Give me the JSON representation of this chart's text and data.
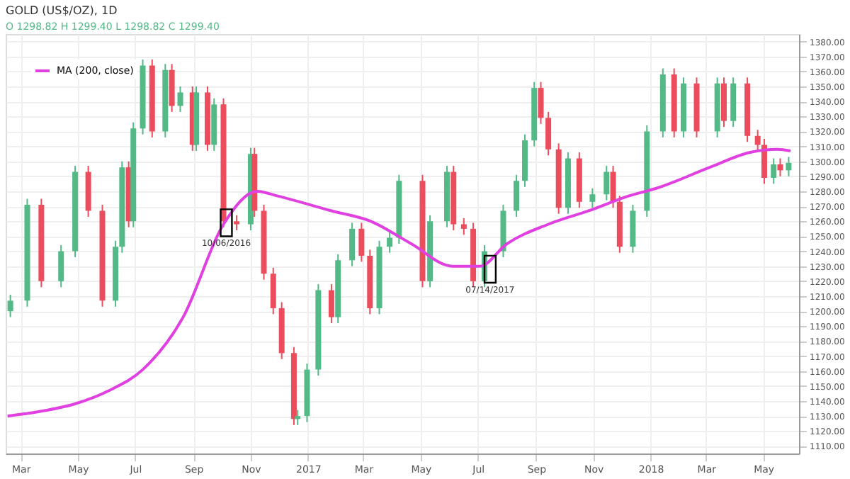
{
  "chart_data": {
    "type": "candlestick",
    "title": "GOLD (US$/OZ), 1D",
    "subtitle": "O 1298.82 H 1299.40 L 1298.82 C 1299.40",
    "x": [
      "2016-02-19",
      "2016-03-08",
      "2016-03-23",
      "2016-04-13",
      "2016-04-28",
      "2016-05-12",
      "2016-05-27",
      "2016-06-10",
      "2016-06-17",
      "2016-06-24",
      "2016-06-29",
      "2016-07-09",
      "2016-07-19",
      "2016-08-02",
      "2016-08-09",
      "2016-08-18",
      "2016-08-31",
      "2016-09-04",
      "2016-09-16",
      "2016-09-23",
      "2016-10-03",
      "2016-10-17",
      "2016-11-01",
      "2016-11-05",
      "2016-11-15",
      "2016-11-25",
      "2016-12-04",
      "2016-12-17",
      "2016-12-21",
      "2016-12-31",
      "2017-01-12",
      "2017-01-26",
      "2017-02-02",
      "2017-02-17",
      "2017-02-27",
      "2017-03-08",
      "2017-03-18",
      "2017-03-29",
      "2017-04-08",
      "2017-05-03",
      "2017-05-11",
      "2017-05-29",
      "2017-06-05",
      "2017-06-16",
      "2017-06-26",
      "2017-07-08",
      "2017-07-28",
      "2017-08-11",
      "2017-08-20",
      "2017-08-30",
      "2017-09-06",
      "2017-09-14",
      "2017-09-25",
      "2017-10-05",
      "2017-10-17",
      "2017-10-31",
      "2017-11-15",
      "2017-11-22",
      "2017-11-29",
      "2017-12-13",
      "2017-12-28",
      "2018-01-14",
      "2018-01-26",
      "2018-02-05",
      "2018-02-19",
      "2018-03-13",
      "2018-03-20",
      "2018-03-30",
      "2018-04-14",
      "2018-04-25",
      "2018-05-02",
      "2018-05-12",
      "2018-05-19",
      "2018-05-28"
    ],
    "ohlc": [
      [
        1200,
        1211,
        1196,
        1207
      ],
      [
        1207,
        1275,
        1203,
        1271
      ],
      [
        1271,
        1275,
        1216,
        1220
      ],
      [
        1220,
        1244,
        1216,
        1240
      ],
      [
        1240,
        1297,
        1236,
        1293
      ],
      [
        1293,
        1297,
        1263,
        1267
      ],
      [
        1267,
        1271,
        1203,
        1207
      ],
      [
        1207,
        1247,
        1203,
        1243
      ],
      [
        1243,
        1300,
        1239,
        1296
      ],
      [
        1296,
        1300,
        1256,
        1260
      ],
      [
        1260,
        1326,
        1256,
        1322
      ],
      [
        1322,
        1368,
        1318,
        1364
      ],
      [
        1364,
        1368,
        1316,
        1320
      ],
      [
        1320,
        1365,
        1316,
        1361
      ],
      [
        1361,
        1365,
        1333,
        1337
      ],
      [
        1337,
        1350,
        1333,
        1346
      ],
      [
        1346,
        1350,
        1307,
        1311
      ],
      [
        1311,
        1350,
        1307,
        1346
      ],
      [
        1346,
        1350,
        1307,
        1311
      ],
      [
        1311,
        1342,
        1307,
        1338
      ],
      [
        1338,
        1342,
        1256,
        1260
      ],
      [
        1260,
        1264,
        1254,
        1258
      ],
      [
        1258,
        1309,
        1254,
        1305
      ],
      [
        1305,
        1309,
        1263,
        1267
      ],
      [
        1267,
        1271,
        1221,
        1225
      ],
      [
        1225,
        1229,
        1198,
        1202
      ],
      [
        1202,
        1206,
        1168,
        1172
      ],
      [
        1172,
        1176,
        1124,
        1128
      ],
      [
        1128,
        1134,
        1124,
        1130
      ],
      [
        1130,
        1165,
        1126,
        1161
      ],
      [
        1161,
        1218,
        1157,
        1214
      ],
      [
        1214,
        1218,
        1192,
        1196
      ],
      [
        1196,
        1238,
        1192,
        1234
      ],
      [
        1234,
        1259,
        1230,
        1255
      ],
      [
        1255,
        1259,
        1233,
        1237
      ],
      [
        1237,
        1241,
        1198,
        1202
      ],
      [
        1202,
        1247,
        1198,
        1243
      ],
      [
        1243,
        1253,
        1239,
        1249
      ],
      [
        1249,
        1291,
        1245,
        1287
      ],
      [
        1287,
        1291,
        1216,
        1220
      ],
      [
        1220,
        1264,
        1216,
        1260
      ],
      [
        1260,
        1297,
        1256,
        1293
      ],
      [
        1293,
        1297,
        1254,
        1258
      ],
      [
        1258,
        1262,
        1251,
        1255
      ],
      [
        1255,
        1259,
        1216,
        1220
      ],
      [
        1220,
        1244,
        1216,
        1240
      ],
      [
        1240,
        1271,
        1236,
        1267
      ],
      [
        1267,
        1291,
        1263,
        1287
      ],
      [
        1287,
        1318,
        1283,
        1314
      ],
      [
        1314,
        1353,
        1310,
        1349
      ],
      [
        1349,
        1353,
        1325,
        1329
      ],
      [
        1329,
        1333,
        1304,
        1308
      ],
      [
        1308,
        1312,
        1265,
        1269
      ],
      [
        1269,
        1306,
        1265,
        1302
      ],
      [
        1302,
        1306,
        1269,
        1273
      ],
      [
        1273,
        1282,
        1269,
        1278
      ],
      [
        1278,
        1297,
        1274,
        1293
      ],
      [
        1293,
        1297,
        1269,
        1273
      ],
      [
        1273,
        1277,
        1239,
        1243
      ],
      [
        1243,
        1271,
        1239,
        1267
      ],
      [
        1267,
        1324,
        1263,
        1320
      ],
      [
        1320,
        1362,
        1316,
        1358
      ],
      [
        1358,
        1362,
        1316,
        1320
      ],
      [
        1320,
        1356,
        1316,
        1352
      ],
      [
        1352,
        1356,
        1316,
        1320
      ],
      [
        1320,
        1356,
        1316,
        1352
      ],
      [
        1352,
        1356,
        1323,
        1327
      ],
      [
        1327,
        1356,
        1323,
        1352
      ],
      [
        1352,
        1356,
        1313,
        1317
      ],
      [
        1317,
        1321,
        1307,
        1311
      ],
      [
        1311,
        1315,
        1285,
        1289
      ],
      [
        1289,
        1302,
        1285,
        1298
      ],
      [
        1298,
        1302,
        1290,
        1294
      ],
      [
        1294,
        1303,
        1290,
        1299
      ]
    ],
    "colors": [
      "#53b987",
      "#53b987",
      "#eb4d5c",
      "#53b987",
      "#53b987",
      "#eb4d5c",
      "#eb4d5c",
      "#53b987",
      "#53b987",
      "#eb4d5c",
      "#53b987",
      "#53b987",
      "#eb4d5c",
      "#53b987",
      "#eb4d5c",
      "#53b987",
      "#eb4d5c",
      "#53b987",
      "#eb4d5c",
      "#53b987",
      "#eb4d5c",
      "#eb4d5c",
      "#53b987",
      "#eb4d5c",
      "#eb4d5c",
      "#eb4d5c",
      "#eb4d5c",
      "#eb4d5c",
      "#53b987",
      "#53b987",
      "#53b987",
      "#eb4d5c",
      "#53b987",
      "#53b987",
      "#eb4d5c",
      "#eb4d5c",
      "#53b987",
      "#53b987",
      "#53b987",
      "#eb4d5c",
      "#53b987",
      "#53b987",
      "#eb4d5c",
      "#eb4d5c",
      "#eb4d5c",
      "#53b987",
      "#53b987",
      "#53b987",
      "#53b987",
      "#53b987",
      "#eb4d5c",
      "#eb4d5c",
      "#eb4d5c",
      "#53b987",
      "#eb4d5c",
      "#53b987",
      "#53b987",
      "#eb4d5c",
      "#eb4d5c",
      "#53b987",
      "#53b987",
      "#53b987",
      "#eb4d5c",
      "#53b987",
      "#eb4d5c",
      "#53b987",
      "#eb4d5c",
      "#53b987",
      "#eb4d5c",
      "#eb4d5c",
      "#eb4d5c",
      "#53b987",
      "#eb4d5c",
      "#53b987"
    ],
    "series": [
      {
        "name": "MA (200, close)",
        "type": "line",
        "color": "#e040e0",
        "x": [
          "2016-02-16",
          "2016-03-21",
          "2016-04-27",
          "2016-06-03",
          "2016-07-09",
          "2016-08-21",
          "2016-10-03",
          "2016-11-08",
          "2016-11-29",
          "2017-01-26",
          "2017-03-09",
          "2017-04-21",
          "2017-06-04",
          "2017-07-03",
          "2017-08-01",
          "2017-09-14",
          "2017-10-27",
          "2017-12-09",
          "2018-01-07",
          "2018-03-05",
          "2018-04-17",
          "2018-05-16",
          "2018-05-30"
        ],
        "values": [
          1130,
          1133,
          1138,
          1147,
          1161,
          1196,
          1258,
          1280,
          1277,
          1267,
          1260,
          1245,
          1230,
          1230,
          1245,
          1258,
          1267,
          1277,
          1282,
          1296,
          1306,
          1308,
          1307
        ]
      }
    ],
    "annotations": [
      {
        "text": "10/06/2016",
        "x": "2016-10-06",
        "y": 1259
      },
      {
        "text": "07/14/2017",
        "x": "2017-07-14",
        "y": 1228
      }
    ],
    "xlim": [
      "2016-02-14",
      "2018-06-08"
    ],
    "xticks": [
      {
        "value": "2016-03-01",
        "label": "Mar"
      },
      {
        "value": "2016-05-01",
        "label": "May"
      },
      {
        "value": "2016-07-01",
        "label": "Jul"
      },
      {
        "value": "2016-09-01",
        "label": "Sep"
      },
      {
        "value": "2016-11-01",
        "label": "Nov"
      },
      {
        "value": "2017-01-01",
        "label": "2017"
      },
      {
        "value": "2017-03-01",
        "label": "Mar"
      },
      {
        "value": "2017-05-01",
        "label": "May"
      },
      {
        "value": "2017-07-01",
        "label": "Jul"
      },
      {
        "value": "2017-09-01",
        "label": "Sep"
      },
      {
        "value": "2017-11-01",
        "label": "Nov"
      },
      {
        "value": "2018-01-01",
        "label": "2018"
      },
      {
        "value": "2018-03-01",
        "label": "Mar"
      },
      {
        "value": "2018-05-01",
        "label": "May"
      }
    ],
    "ylim": [
      1105,
      1385
    ],
    "yticks": [
      {
        "value": 1110,
        "label": "1110.00"
      },
      {
        "value": 1120,
        "label": "1120.00"
      },
      {
        "value": 1130,
        "label": "1130.00"
      },
      {
        "value": 1140,
        "label": "1140.00"
      },
      {
        "value": 1150,
        "label": "1150.00"
      },
      {
        "value": 1160,
        "label": "1160.00"
      },
      {
        "value": 1170,
        "label": "1170.00"
      },
      {
        "value": 1180,
        "label": "1180.00"
      },
      {
        "value": 1190,
        "label": "1190.00"
      },
      {
        "value": 1200,
        "label": "1200.00"
      },
      {
        "value": 1210,
        "label": "1210.00"
      },
      {
        "value": 1220,
        "label": "1220.00"
      },
      {
        "value": 1230,
        "label": "1230.00"
      },
      {
        "value": 1240,
        "label": "1240.00"
      },
      {
        "value": 1250,
        "label": "1250.00"
      },
      {
        "value": 1260,
        "label": "1260.00"
      },
      {
        "value": 1270,
        "label": "1270.00"
      },
      {
        "value": 1280,
        "label": "1280.00"
      },
      {
        "value": 1290,
        "label": "1290.00"
      },
      {
        "value": 1300,
        "label": "1300.00"
      },
      {
        "value": 1310,
        "label": "1310.00"
      },
      {
        "value": 1320,
        "label": "1320.00"
      },
      {
        "value": 1330,
        "label": "1330.00"
      },
      {
        "value": 1340,
        "label": "1340.00"
      },
      {
        "value": 1350,
        "label": "1350.00"
      },
      {
        "value": 1360,
        "label": "1360.00"
      },
      {
        "value": 1370,
        "label": "1370.00"
      },
      {
        "value": 1380,
        "label": "1380.00"
      }
    ],
    "grid": true,
    "legend": "top left"
  }
}
